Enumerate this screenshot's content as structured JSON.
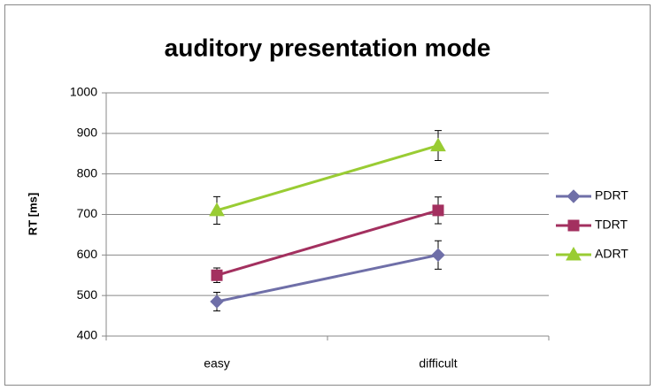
{
  "chart_data": {
    "type": "line",
    "title": "auditory presentation mode",
    "ylabel": "RT [ms]",
    "categories": [
      "easy",
      "difficult"
    ],
    "series": [
      {
        "name": "PDRT",
        "color": "#6f6fa8",
        "marker": "diamond",
        "values": [
          485,
          600
        ],
        "errors": [
          23,
          35
        ]
      },
      {
        "name": "TDRT",
        "color": "#a3305f",
        "marker": "square",
        "values": [
          550,
          710
        ],
        "errors": [
          18,
          33
        ]
      },
      {
        "name": "ADRT",
        "color": "#99cc33",
        "marker": "triangle",
        "values": [
          710,
          870
        ],
        "errors": [
          34,
          37
        ]
      }
    ],
    "ylim": [
      400,
      1000
    ],
    "yticks": [
      400,
      500,
      600,
      700,
      800,
      900,
      1000
    ],
    "grid": true,
    "legend": "right"
  }
}
